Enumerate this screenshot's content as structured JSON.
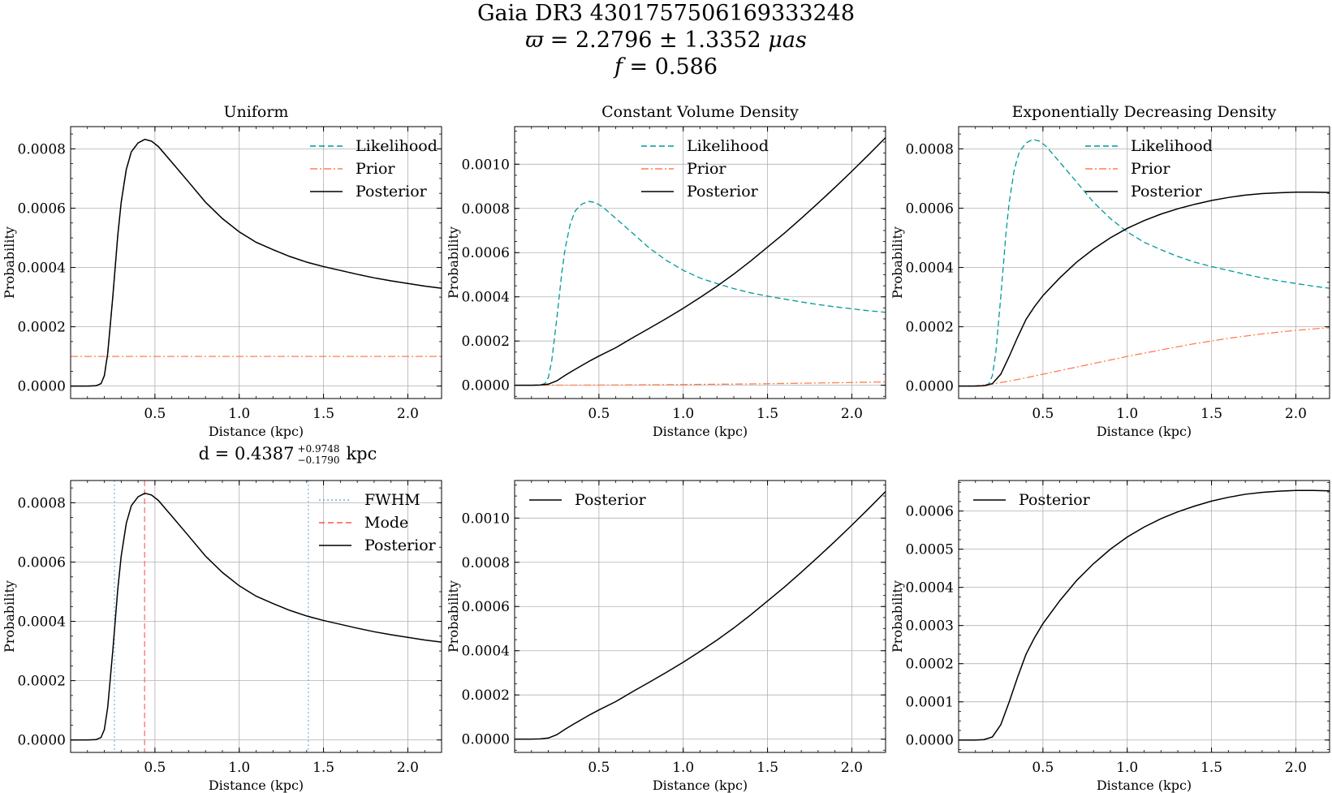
{
  "suptitle": {
    "line1": "Gaia DR3 4301757506169333248",
    "line2_symbol": "ϖ",
    "line2_value": "= 2.2796 ± 1.3352",
    "line2_unit": "μas",
    "line3_symbol": "f",
    "line3_value": "= 0.586"
  },
  "colors": {
    "likelihood": "#009999",
    "prior": "#ff7f50",
    "posterior": "#000000",
    "fwhm": "#6baed6",
    "mode": "#ff5555",
    "grid": "#b0b0b0"
  },
  "chart_data": [
    {
      "type": "line",
      "title": "Uniform",
      "xlabel": "Distance (kpc)",
      "ylabel": "Probability",
      "xlim": [
        0,
        2.2
      ],
      "ylim": [
        -4.2e-05,
        0.000875
      ],
      "xticks": [
        "0.5",
        "1.0",
        "1.5",
        "2.0"
      ],
      "yticks": [
        "0.0000",
        "0.0002",
        "0.0004",
        "0.0006",
        "0.0008"
      ],
      "legend": "upper right",
      "grid": true,
      "series": [
        {
          "name": "Likelihood",
          "style": "dashed",
          "color": "#009999",
          "x": [
            0,
            0.1,
            0.15,
            0.18,
            0.2,
            0.22,
            0.25,
            0.28,
            0.3,
            0.33,
            0.36,
            0.4,
            0.44,
            0.48,
            0.52,
            0.6,
            0.7,
            0.8,
            0.9,
            1.0,
            1.1,
            1.2,
            1.3,
            1.4,
            1.5,
            1.6,
            1.7,
            1.8,
            1.9,
            2.0,
            2.1,
            2.2
          ],
          "y": [
            0,
            0,
            1e-06,
            8e-06,
            3.5e-05,
            0.00011,
            0.0003,
            0.00051,
            0.00062,
            0.00073,
            0.00079,
            0.00082,
            0.000832,
            0.000826,
            0.000808,
            0.000755,
            0.000688,
            0.00062,
            0.000565,
            0.00052,
            0.000485,
            0.00046,
            0.000437,
            0.000418,
            0.000403,
            0.00039,
            0.000377,
            0.000365,
            0.000355,
            0.000346,
            0.000337,
            0.00033
          ]
        },
        {
          "name": "Prior",
          "style": "dashdot",
          "color": "#ff7f50",
          "x": [
            0,
            2.2
          ],
          "y": [
            0.0001,
            0.0001
          ]
        },
        {
          "name": "Posterior",
          "style": "solid",
          "color": "#000000",
          "x": [
            0,
            0.1,
            0.15,
            0.18,
            0.2,
            0.22,
            0.25,
            0.28,
            0.3,
            0.33,
            0.36,
            0.4,
            0.44,
            0.48,
            0.52,
            0.6,
            0.7,
            0.8,
            0.9,
            1.0,
            1.1,
            1.2,
            1.3,
            1.4,
            1.5,
            1.6,
            1.7,
            1.8,
            1.9,
            2.0,
            2.1,
            2.2
          ],
          "y": [
            0,
            0,
            1e-06,
            8e-06,
            3.5e-05,
            0.00011,
            0.0003,
            0.00051,
            0.00062,
            0.00073,
            0.00079,
            0.00082,
            0.000832,
            0.000826,
            0.000808,
            0.000755,
            0.000688,
            0.00062,
            0.000565,
            0.00052,
            0.000485,
            0.00046,
            0.000437,
            0.000418,
            0.000403,
            0.00039,
            0.000377,
            0.000365,
            0.000355,
            0.000346,
            0.000337,
            0.00033
          ]
        }
      ]
    },
    {
      "type": "line",
      "title": "Constant Volume Density",
      "xlabel": "Distance (kpc)",
      "ylabel": "Probability",
      "xlim": [
        0,
        2.2
      ],
      "ylim": [
        -6e-05,
        0.00117
      ],
      "xticks": [
        "0.5",
        "1.0",
        "1.5",
        "2.0"
      ],
      "yticks": [
        "0.0000",
        "0.0002",
        "0.0004",
        "0.0006",
        "0.0008",
        "0.0010"
      ],
      "legend": "upper center",
      "grid": true,
      "series": [
        {
          "name": "Likelihood",
          "style": "dashed",
          "color": "#009999",
          "x": [
            0,
            0.1,
            0.15,
            0.18,
            0.2,
            0.22,
            0.25,
            0.28,
            0.3,
            0.33,
            0.36,
            0.4,
            0.44,
            0.48,
            0.52,
            0.6,
            0.7,
            0.8,
            0.9,
            1.0,
            1.1,
            1.2,
            1.3,
            1.4,
            1.5,
            1.6,
            1.7,
            1.8,
            1.9,
            2.0,
            2.1,
            2.2
          ],
          "y": [
            0,
            0,
            1e-06,
            8e-06,
            3.5e-05,
            0.00011,
            0.0003,
            0.00051,
            0.00062,
            0.00073,
            0.00079,
            0.00082,
            0.000832,
            0.000826,
            0.000808,
            0.000755,
            0.000688,
            0.00062,
            0.000565,
            0.00052,
            0.000485,
            0.00046,
            0.000437,
            0.000418,
            0.000403,
            0.00039,
            0.000377,
            0.000365,
            0.000355,
            0.000346,
            0.000337,
            0.00033
          ]
        },
        {
          "name": "Prior",
          "style": "dashdot",
          "color": "#ff7f50",
          "x": [
            0,
            0.5,
            1.0,
            1.5,
            2.0,
            2.2
          ],
          "y": [
            0,
            8e-07,
            3.2e-06,
            7e-06,
            1.25e-05,
            1.52e-05
          ]
        },
        {
          "name": "Posterior",
          "style": "solid",
          "color": "#000000",
          "x": [
            0,
            0.1,
            0.15,
            0.2,
            0.25,
            0.3,
            0.35,
            0.4,
            0.45,
            0.5,
            0.6,
            0.7,
            0.8,
            0.9,
            1.0,
            1.1,
            1.2,
            1.3,
            1.4,
            1.5,
            1.6,
            1.7,
            1.8,
            1.9,
            2.0,
            2.1,
            2.2
          ],
          "y": [
            0,
            0,
            1e-06,
            5e-06,
            2e-05,
            4.5e-05,
            6.8e-05,
            9e-05,
            0.000112,
            0.000132,
            0.00017,
            0.000215,
            0.000258,
            0.000302,
            0.000348,
            0.000397,
            0.000448,
            0.000503,
            0.000562,
            0.000625,
            0.000688,
            0.000755,
            0.000824,
            0.000895,
            0.000968,
            0.001043,
            0.00112
          ]
        }
      ]
    },
    {
      "type": "line",
      "title": "Exponentially Decreasing Density",
      "xlabel": "Distance (kpc)",
      "ylabel": "Probability",
      "xlim": [
        0,
        2.2
      ],
      "ylim": [
        -4.2e-05,
        0.000875
      ],
      "xticks": [
        "0.5",
        "1.0",
        "1.5",
        "2.0"
      ],
      "yticks": [
        "0.0000",
        "0.0002",
        "0.0004",
        "0.0006",
        "0.0008"
      ],
      "legend": "upper center",
      "grid": true,
      "series": [
        {
          "name": "Likelihood",
          "style": "dashed",
          "color": "#009999",
          "x": [
            0,
            0.1,
            0.15,
            0.18,
            0.2,
            0.22,
            0.25,
            0.28,
            0.3,
            0.33,
            0.36,
            0.4,
            0.44,
            0.48,
            0.52,
            0.6,
            0.7,
            0.8,
            0.9,
            1.0,
            1.1,
            1.2,
            1.3,
            1.4,
            1.5,
            1.6,
            1.7,
            1.8,
            1.9,
            2.0,
            2.1,
            2.2
          ],
          "y": [
            0,
            0,
            1e-06,
            8e-06,
            3.5e-05,
            0.00011,
            0.0003,
            0.00051,
            0.00062,
            0.00073,
            0.00079,
            0.00082,
            0.000832,
            0.000826,
            0.000808,
            0.000755,
            0.000688,
            0.00062,
            0.000565,
            0.00052,
            0.000485,
            0.00046,
            0.000437,
            0.000418,
            0.000403,
            0.00039,
            0.000377,
            0.000365,
            0.000355,
            0.000346,
            0.000337,
            0.00033
          ]
        },
        {
          "name": "Prior",
          "style": "dashdot",
          "color": "#ff7f50",
          "x": [
            0,
            0.1,
            0.2,
            0.3,
            0.4,
            0.5,
            0.6,
            0.8,
            1.0,
            1.2,
            1.4,
            1.6,
            1.8,
            2.0,
            2.2
          ],
          "y": [
            0,
            1e-06,
            7e-06,
            1.7e-05,
            2.8e-05,
            4e-05,
            5.2e-05,
            7.6e-05,
            0.0001,
            0.000122,
            0.000143,
            0.000161,
            0.000176,
            0.000188,
            0.000197
          ]
        },
        {
          "name": "Posterior",
          "style": "solid",
          "color": "#000000",
          "x": [
            0,
            0.1,
            0.15,
            0.2,
            0.25,
            0.3,
            0.35,
            0.4,
            0.45,
            0.5,
            0.6,
            0.7,
            0.8,
            0.9,
            1.0,
            1.1,
            1.2,
            1.3,
            1.4,
            1.5,
            1.6,
            1.7,
            1.8,
            1.9,
            2.0,
            2.1,
            2.2
          ],
          "y": [
            0,
            0,
            1e-06,
            8e-06,
            4e-05,
            0.0001,
            0.000165,
            0.000225,
            0.000268,
            0.000305,
            0.000365,
            0.000418,
            0.000462,
            0.0005,
            0.000532,
            0.000558,
            0.00058,
            0.000598,
            0.000613,
            0.000626,
            0.000636,
            0.000644,
            0.000649,
            0.000652,
            0.000654,
            0.000654,
            0.000653
          ]
        }
      ]
    },
    {
      "type": "line",
      "title": "d = 0.4387",
      "title_sup": "+0.9748",
      "title_sub": "−0.1790",
      "title_unit": "kpc",
      "xlabel": "Distance (kpc)",
      "ylabel": "Probability",
      "xlim": [
        0,
        2.2
      ],
      "ylim": [
        -4.2e-05,
        0.000875
      ],
      "xticks": [
        "0.5",
        "1.0",
        "1.5",
        "2.0"
      ],
      "yticks": [
        "0.0000",
        "0.0002",
        "0.0004",
        "0.0006",
        "0.0008"
      ],
      "legend": "upper right",
      "grid": true,
      "vlines": [
        {
          "name": "FWHM",
          "style": "dotted",
          "color": "#6baed6",
          "x": [
            0.26,
            1.41
          ]
        },
        {
          "name": "Mode",
          "style": "dashed",
          "color": "#ff5555",
          "x": [
            0.4387
          ]
        }
      ],
      "series": [
        {
          "name": "Posterior",
          "style": "solid",
          "color": "#000000",
          "x": [
            0,
            0.1,
            0.15,
            0.18,
            0.2,
            0.22,
            0.25,
            0.28,
            0.3,
            0.33,
            0.36,
            0.4,
            0.44,
            0.48,
            0.52,
            0.6,
            0.7,
            0.8,
            0.9,
            1.0,
            1.1,
            1.2,
            1.3,
            1.4,
            1.5,
            1.6,
            1.7,
            1.8,
            1.9,
            2.0,
            2.1,
            2.2
          ],
          "y": [
            0,
            0,
            1e-06,
            8e-06,
            3.5e-05,
            0.00011,
            0.0003,
            0.00051,
            0.00062,
            0.00073,
            0.00079,
            0.00082,
            0.000832,
            0.000826,
            0.000808,
            0.000755,
            0.000688,
            0.00062,
            0.000565,
            0.00052,
            0.000485,
            0.00046,
            0.000437,
            0.000418,
            0.000403,
            0.00039,
            0.000377,
            0.000365,
            0.000355,
            0.000346,
            0.000337,
            0.00033
          ]
        }
      ]
    },
    {
      "type": "line",
      "title": "",
      "xlabel": "Distance (kpc)",
      "ylabel": "Probability",
      "xlim": [
        0,
        2.2
      ],
      "ylim": [
        -6e-05,
        0.00117
      ],
      "xticks": [
        "0.5",
        "1.0",
        "1.5",
        "2.0"
      ],
      "yticks": [
        "0.0000",
        "0.0002",
        "0.0004",
        "0.0006",
        "0.0008",
        "0.0010"
      ],
      "legend": "upper left",
      "grid": true,
      "series": [
        {
          "name": "Posterior",
          "style": "solid",
          "color": "#000000",
          "x": [
            0,
            0.1,
            0.15,
            0.2,
            0.25,
            0.3,
            0.35,
            0.4,
            0.45,
            0.5,
            0.6,
            0.7,
            0.8,
            0.9,
            1.0,
            1.1,
            1.2,
            1.3,
            1.4,
            1.5,
            1.6,
            1.7,
            1.8,
            1.9,
            2.0,
            2.1,
            2.2
          ],
          "y": [
            0,
            0,
            1e-06,
            5e-06,
            2e-05,
            4.5e-05,
            6.8e-05,
            9e-05,
            0.000112,
            0.000132,
            0.00017,
            0.000215,
            0.000258,
            0.000302,
            0.000348,
            0.000397,
            0.000448,
            0.000503,
            0.000562,
            0.000625,
            0.000688,
            0.000755,
            0.000824,
            0.000895,
            0.000968,
            0.001043,
            0.00112
          ]
        }
      ]
    },
    {
      "type": "line",
      "title": "",
      "xlabel": "Distance (kpc)",
      "ylabel": "Probability",
      "xlim": [
        0,
        2.2
      ],
      "ylim": [
        -3.25e-05,
        0.00068
      ],
      "xticks": [
        "0.5",
        "1.0",
        "1.5",
        "2.0"
      ],
      "yticks": [
        "0.0000",
        "0.0001",
        "0.0002",
        "0.0003",
        "0.0004",
        "0.0005",
        "0.0006"
      ],
      "legend": "upper left",
      "grid": true,
      "series": [
        {
          "name": "Posterior",
          "style": "solid",
          "color": "#000000",
          "x": [
            0,
            0.1,
            0.15,
            0.2,
            0.25,
            0.3,
            0.35,
            0.4,
            0.45,
            0.5,
            0.6,
            0.7,
            0.8,
            0.9,
            1.0,
            1.1,
            1.2,
            1.3,
            1.4,
            1.5,
            1.6,
            1.7,
            1.8,
            1.9,
            2.0,
            2.1,
            2.2
          ],
          "y": [
            0,
            0,
            1e-06,
            8e-06,
            4e-05,
            0.0001,
            0.000165,
            0.000225,
            0.000268,
            0.000305,
            0.000365,
            0.000418,
            0.000462,
            0.0005,
            0.000532,
            0.000558,
            0.00058,
            0.000598,
            0.000613,
            0.000626,
            0.000636,
            0.000644,
            0.000649,
            0.000652,
            0.000654,
            0.000654,
            0.000653
          ]
        }
      ]
    }
  ]
}
